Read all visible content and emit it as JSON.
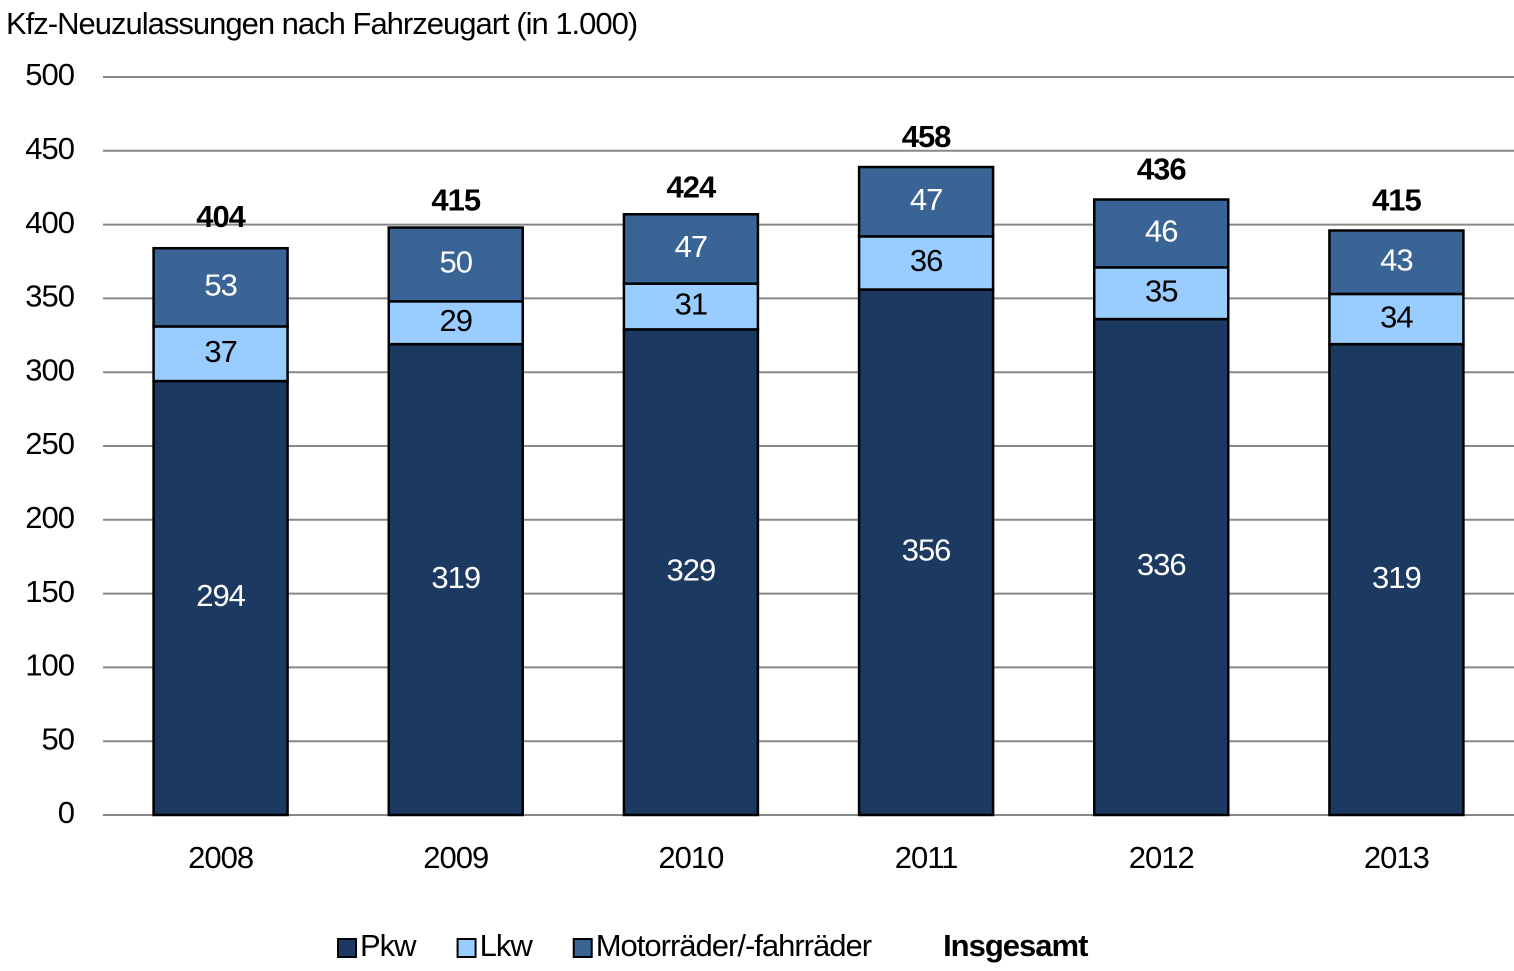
{
  "chart_data": {
    "type": "stacked_bar",
    "title": "Kfz-Neuzulassungen nach Fahrzeugart (in 1.000)",
    "categories": [
      "2008",
      "2009",
      "2010",
      "2011",
      "2012",
      "2013"
    ],
    "series": [
      {
        "name": "Pkw",
        "color": "#1c3961",
        "label_color": "#ffffff",
        "values": [
          294,
          319,
          329,
          356,
          336,
          319
        ]
      },
      {
        "name": "Lkw",
        "color": "#99ccff",
        "label_color": "#000000",
        "values": [
          37,
          29,
          31,
          36,
          35,
          34
        ]
      },
      {
        "name": "Motorräder/-fahrräder",
        "color": "#3a6496",
        "label_color": "#ffffff",
        "values": [
          53,
          50,
          47,
          47,
          46,
          43
        ]
      }
    ],
    "totals": {
      "name": "Insgesamt",
      "values": [
        404,
        415,
        424,
        458,
        436,
        415
      ]
    },
    "ylim": [
      0,
      500
    ],
    "yticks": [
      0,
      50,
      100,
      150,
      200,
      250,
      300,
      350,
      400,
      450,
      500
    ],
    "grid": true,
    "legend": "bottom"
  }
}
